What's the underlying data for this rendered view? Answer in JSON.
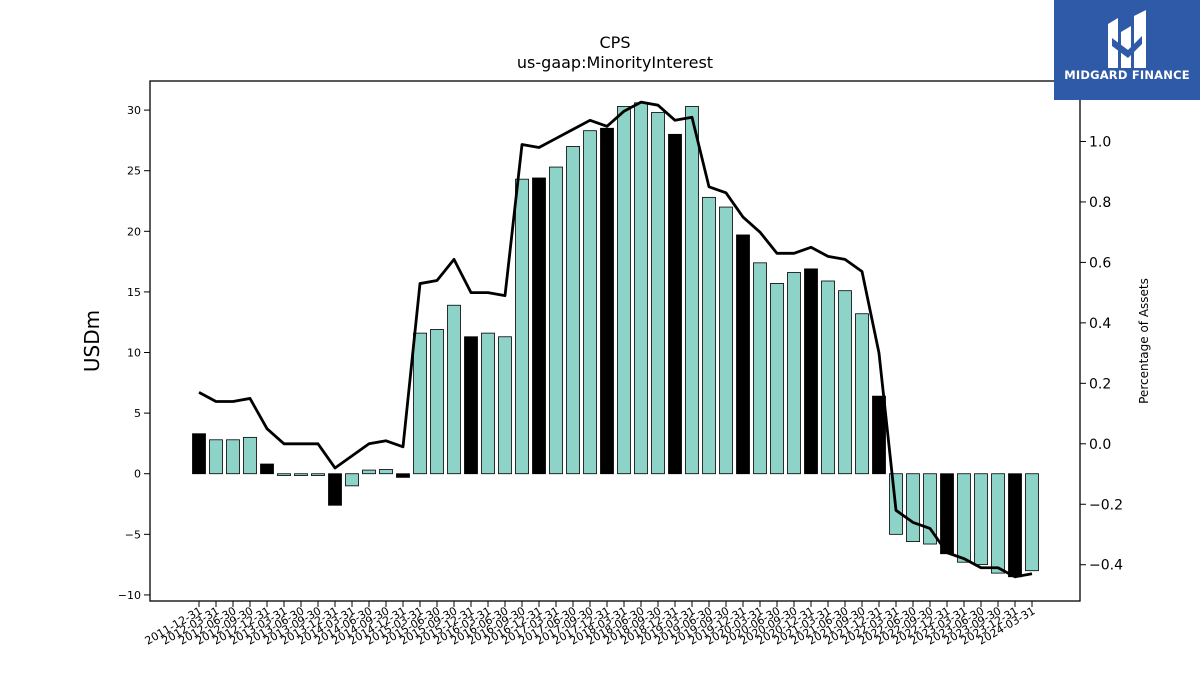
{
  "chart_data": {
    "type": "bar+line",
    "title": "CPS",
    "subtitle": "us-gaap:MinorityInterest",
    "ylabel": "USDm",
    "y2label": "Percentage of Assets",
    "ylim": [
      -10.5,
      32.4
    ],
    "y2lim": [
      -0.52,
      1.2
    ],
    "yticks": [
      -10,
      -5,
      0,
      5,
      10,
      15,
      20,
      25,
      30
    ],
    "y2ticks": [
      -0.4,
      -0.2,
      0.0,
      0.2,
      0.4,
      0.6,
      0.8,
      1.0
    ],
    "ytick_labels": [
      "−10",
      "−5",
      "0",
      "5",
      "10",
      "15",
      "20",
      "25",
      "30"
    ],
    "y2tick_labels": [
      "−0.4",
      "−0.2",
      "0.0",
      "0.2",
      "0.4",
      "0.6",
      "0.8",
      "1.0"
    ],
    "categories": [
      "2011-12-31",
      "2012-03-31",
      "2012-06-30",
      "2012-09-30",
      "2012-12-31",
      "2013-03-31",
      "2013-06-30",
      "2013-09-30",
      "2013-12-31",
      "2014-03-31",
      "2014-06-30",
      "2014-09-30",
      "2014-12-31",
      "2015-03-31",
      "2015-06-30",
      "2015-09-30",
      "2015-12-31",
      "2016-03-31",
      "2016-06-30",
      "2016-09-30",
      "2016-12-31",
      "2017-03-31",
      "2017-06-30",
      "2017-09-30",
      "2017-12-31",
      "2018-03-31",
      "2018-06-30",
      "2018-09-30",
      "2018-12-31",
      "2019-03-31",
      "2019-06-30",
      "2019-09-30",
      "2019-12-31",
      "2020-03-31",
      "2020-06-30",
      "2020-09-30",
      "2020-12-31",
      "2021-03-31",
      "2021-06-30",
      "2021-09-30",
      "2021-12-31",
      "2022-03-31",
      "2022-06-30",
      "2022-09-30",
      "2022-12-31",
      "2023-03-31",
      "2023-06-30",
      "2023-09-30",
      "2023-12-31",
      "2024-03-31"
    ],
    "bar_values": [
      3.3,
      2.8,
      2.8,
      3.0,
      0.8,
      -0.15,
      -0.15,
      -0.15,
      -2.6,
      -1.0,
      0.3,
      0.35,
      -0.3,
      11.6,
      11.9,
      13.9,
      11.3,
      11.6,
      11.3,
      24.3,
      24.4,
      25.3,
      27.0,
      28.3,
      28.5,
      30.3,
      30.6,
      29.8,
      28.0,
      30.3,
      22.8,
      22.0,
      19.7,
      17.4,
      15.7,
      16.6,
      16.9,
      15.9,
      15.1,
      13.2,
      6.4,
      -5.0,
      -5.6,
      -5.8,
      -6.6,
      -7.3,
      -7.5,
      -8.2,
      -8.5,
      -8.0
    ],
    "bar_highlight": [
      true,
      false,
      false,
      false,
      true,
      false,
      false,
      false,
      true,
      false,
      false,
      false,
      true,
      false,
      false,
      false,
      true,
      false,
      false,
      false,
      true,
      false,
      false,
      false,
      true,
      false,
      false,
      false,
      true,
      false,
      false,
      false,
      true,
      false,
      false,
      false,
      true,
      false,
      false,
      false,
      true,
      false,
      false,
      false,
      true,
      false,
      false,
      false,
      true,
      false
    ],
    "line_values": [
      0.17,
      0.14,
      0.14,
      0.15,
      0.05,
      0.0,
      0.0,
      0.0,
      -0.08,
      -0.04,
      0.0,
      0.01,
      -0.01,
      0.53,
      0.54,
      0.61,
      0.5,
      0.5,
      0.49,
      0.99,
      0.98,
      1.01,
      1.04,
      1.07,
      1.05,
      1.1,
      1.13,
      1.12,
      1.07,
      1.08,
      0.85,
      0.83,
      0.75,
      0.7,
      0.63,
      0.63,
      0.65,
      0.62,
      0.61,
      0.57,
      0.3,
      -0.22,
      -0.26,
      -0.28,
      -0.36,
      -0.38,
      -0.41,
      -0.41,
      -0.44,
      -0.43
    ],
    "colors": {
      "bar": "#8dd3c7",
      "bar_highlight": "#000000",
      "line": "#000000",
      "edge": "#000000"
    },
    "grid": false,
    "legend": "none"
  },
  "logo": {
    "name": "MIDGARD FINANCE",
    "bg": "#2f5aa8"
  }
}
